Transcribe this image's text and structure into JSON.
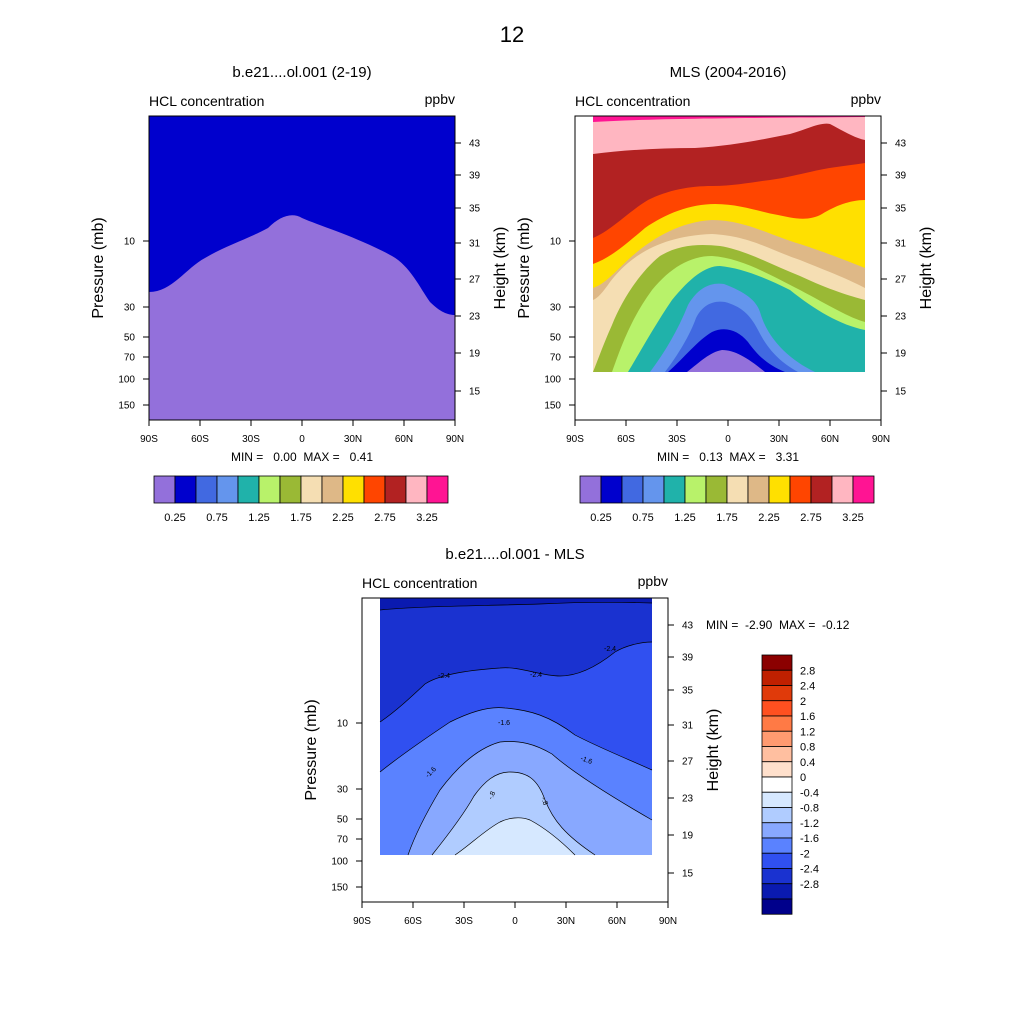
{
  "page_title": "12",
  "chart_data": [
    {
      "type": "contour",
      "title": "b.e21....ol.001 (2-19)",
      "left_string": "HCL concentration",
      "right_string": "ppbv",
      "ylabel": "Pressure (mb)",
      "ylabel_right": "Height (km)",
      "xlim": [
        -90,
        90
      ],
      "x_ticks": [
        "90S",
        "60S",
        "30S",
        "0",
        "30N",
        "60N",
        "90N"
      ],
      "pressure_ticks": [
        "10",
        "30",
        "50",
        "70",
        "100",
        "150"
      ],
      "height_ticks": [
        "43",
        "39",
        "35",
        "31",
        "27",
        "23",
        "19",
        "15"
      ],
      "minmax": "MIN =   0.00  MAX =   0.41",
      "colorbar_labels": [
        "0.25",
        "0.75",
        "1.25",
        "1.75",
        "2.25",
        "2.75",
        "3.25"
      ],
      "colorbar_colors": [
        "#9370db",
        "#0000cd",
        "#4169e1",
        "#6495ed",
        "#20b2aa",
        "#b8f26a",
        "#9ab935",
        "#f5deb3",
        "#deb887",
        "#ffe000",
        "#ff4500",
        "#b22222",
        "#ffb6c1",
        "#ff1493"
      ]
    },
    {
      "type": "contour",
      "title": "MLS (2004-2016)",
      "left_string": "HCL concentration",
      "right_string": "ppbv",
      "ylabel": "Pressure (mb)",
      "ylabel_right": "Height (km)",
      "xlim": [
        -90,
        90
      ],
      "x_ticks": [
        "90S",
        "60S",
        "30S",
        "0",
        "30N",
        "60N",
        "90N"
      ],
      "pressure_ticks": [
        "10",
        "30",
        "50",
        "70",
        "100",
        "150"
      ],
      "height_ticks": [
        "43",
        "39",
        "35",
        "31",
        "27",
        "23",
        "19",
        "15"
      ],
      "minmax": "MIN =   0.13  MAX =   3.31",
      "colorbar_labels": [
        "0.25",
        "0.75",
        "1.25",
        "1.75",
        "2.25",
        "2.75",
        "3.25"
      ],
      "colorbar_colors": [
        "#9370db",
        "#0000cd",
        "#4169e1",
        "#6495ed",
        "#20b2aa",
        "#b8f26a",
        "#9ab935",
        "#f5deb3",
        "#deb887",
        "#ffe000",
        "#ff4500",
        "#b22222",
        "#ffb6c1",
        "#ff1493"
      ]
    },
    {
      "type": "contour",
      "title": "b.e21....ol.001 - MLS",
      "left_string": "HCL concentration",
      "right_string": "ppbv",
      "ylabel": "Pressure (mb)",
      "ylabel_right": "Height (km)",
      "xlim": [
        -90,
        90
      ],
      "x_ticks": [
        "90S",
        "60S",
        "30S",
        "0",
        "30N",
        "60N",
        "90N"
      ],
      "pressure_ticks": [
        "10",
        "30",
        "50",
        "70",
        "100",
        "150"
      ],
      "height_ticks": [
        "43",
        "39",
        "35",
        "31",
        "27",
        "23",
        "19",
        "15"
      ],
      "minmax": "MIN =  -2.90  MAX =  -0.12",
      "contour_labels": [
        "-2.4",
        "-2.4",
        "-2.4",
        "-1.6",
        "-1.6",
        "-1.6",
        "-.8",
        "-.8"
      ],
      "colorbar_labels": [
        "2.8",
        "2.4",
        "2",
        "1.6",
        "1.2",
        "0.8",
        "0.4",
        "0",
        "-0.4",
        "-0.8",
        "-1.2",
        "-1.6",
        "-2",
        "-2.4",
        "-2.8"
      ],
      "colorbar_colors": [
        "#8b0000",
        "#c02000",
        "#e03a0a",
        "#ff5020",
        "#ff7a45",
        "#ff9a70",
        "#ffbfa0",
        "#ffe0cc",
        "#ffffff",
        "#d6e8ff",
        "#b0ccff",
        "#88a8ff",
        "#5a82ff",
        "#3050f0",
        "#1a32d0",
        "#0a1ab0",
        "#00008b"
      ]
    }
  ]
}
